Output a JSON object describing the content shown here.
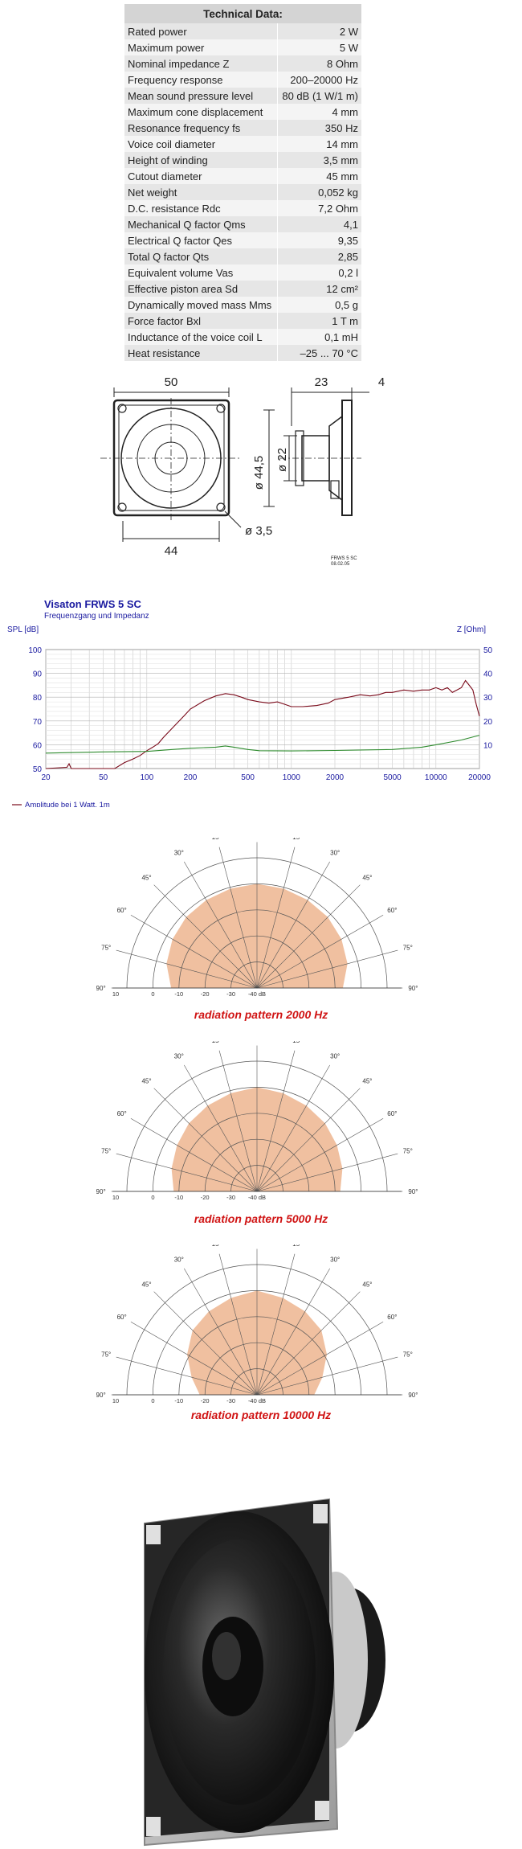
{
  "tech": {
    "title": "Technical Data:",
    "rows": [
      {
        "k": "Rated power",
        "v": "2 W"
      },
      {
        "k": "Maximum power",
        "v": "5 W"
      },
      {
        "k": "Nominal impedance Z",
        "v": "8 Ohm"
      },
      {
        "k": "Frequency response",
        "v": "200–20000 Hz"
      },
      {
        "k": "Mean sound pressure level",
        "v": "80 dB (1 W/1 m)"
      },
      {
        "k": "Maximum cone displacement",
        "v": "4 mm"
      },
      {
        "k": "Resonance frequency fs",
        "v": "350 Hz"
      },
      {
        "k": "Voice coil diameter",
        "v": "14 mm"
      },
      {
        "k": "Height of winding",
        "v": "3,5 mm"
      },
      {
        "k": "Cutout diameter",
        "v": "45 mm"
      },
      {
        "k": "Net weight",
        "v": "0,052 kg"
      },
      {
        "k": "D.C. resistance Rdc",
        "v": "7,2 Ohm"
      },
      {
        "k": "Mechanical Q factor Qms",
        "v": "4,1"
      },
      {
        "k": "Electrical Q factor Qes",
        "v": "9,35"
      },
      {
        "k": "Total Q factor Qts",
        "v": "2,85"
      },
      {
        "k": "Equivalent volume Vas",
        "v": "0,2 l"
      },
      {
        "k": "Effective piston area Sd",
        "v": "12 cm²"
      },
      {
        "k": "Dynamically moved mass Mms",
        "v": "0,5 g"
      },
      {
        "k": "Force factor Bxl",
        "v": "1 T m"
      },
      {
        "k": "Inductance of the voice coil L",
        "v": "0,1 mH"
      },
      {
        "k": "Heat resistance",
        "v": "–25 ... 70 °C"
      }
    ]
  },
  "drawing": {
    "dim_width": "50",
    "dim_depth": "23",
    "dim_flange": "4",
    "dim_bottom": "44",
    "dim_outer_dia": "ø 44,5",
    "dim_inner_dia": "ø 22",
    "dim_hole": "ø 3,5",
    "stamp_line1": "FRWS 5 SC",
    "stamp_line2": "08.02.05"
  },
  "chart_data": {
    "type": "line",
    "title": "Visaton FRWS 5 SC",
    "subtitle": "Frequenzgang und Impedanz",
    "ylabel_left": "SPL [dB]",
    "ylabel_right": "Z [Ohm]",
    "x_scale": "log",
    "xlim": [
      20,
      20000
    ],
    "ylim_left": [
      50,
      100
    ],
    "ylim_right": [
      0,
      50
    ],
    "x_ticks": [
      "20",
      "50",
      "100",
      "200",
      "500",
      "1000",
      "2000",
      "5000",
      "10000",
      "20000"
    ],
    "y_ticks_left": [
      "50",
      "60",
      "70",
      "80",
      "90",
      "100"
    ],
    "y_ticks_right": [
      "10",
      "20",
      "30",
      "40",
      "50"
    ],
    "grid": true,
    "legend_position": "bottom-left",
    "colors": {
      "spl": "#7a0a1a",
      "impedance": "#2e8b2e",
      "axis_text": "#1a1aa0"
    },
    "series": [
      {
        "name": "Amplitude bei 1 Watt, 1m",
        "axis": "left",
        "x": [
          20,
          28,
          29,
          30,
          40,
          60,
          70,
          80,
          90,
          100,
          110,
          120,
          130,
          150,
          180,
          200,
          250,
          300,
          350,
          400,
          450,
          500,
          600,
          700,
          800,
          900,
          1000,
          1200,
          1500,
          1800,
          2000,
          2500,
          3000,
          3500,
          4000,
          4500,
          5000,
          6000,
          7000,
          8000,
          9000,
          10000,
          11000,
          12000,
          13000,
          14000,
          15000,
          16000,
          17000,
          18000,
          19000,
          20000
        ],
        "y": [
          50,
          50.5,
          52,
          50,
          50,
          50,
          52.5,
          54,
          55.5,
          57.5,
          59,
          60.5,
          63,
          67,
          72,
          75,
          78.5,
          80.5,
          81.5,
          81,
          80,
          79,
          78,
          77.5,
          78,
          77,
          76,
          76,
          76.5,
          77.5,
          79,
          80,
          81,
          80.5,
          81,
          82,
          82,
          83,
          82.5,
          83,
          83,
          84,
          83,
          84,
          82,
          83,
          84,
          87,
          85,
          83,
          77,
          72
        ]
      },
      {
        "name": "Impedanz [Ohm]",
        "axis": "right",
        "x": [
          20,
          50,
          100,
          150,
          200,
          300,
          350,
          400,
          500,
          600,
          1000,
          2000,
          5000,
          8000,
          10000,
          15000,
          20000
        ],
        "y": [
          6.5,
          7,
          7.2,
          8,
          8.5,
          9,
          9.5,
          9,
          8,
          7.5,
          7.4,
          7.6,
          8,
          9,
          10,
          12,
          14
        ]
      }
    ]
  },
  "polar": {
    "angle_labels": [
      "0°",
      "15°",
      "30°",
      "45°",
      "60°",
      "75°",
      "90°",
      "15°",
      "30°",
      "45°",
      "60°",
      "75°",
      "90°"
    ],
    "db_labels": [
      "10",
      "0",
      "-10",
      "-20",
      "-30",
      "-40 dB"
    ],
    "captions": [
      "radiation pattern 2000 Hz",
      "radiation pattern 5000 Hz",
      "radiation pattern 10000 Hz"
    ],
    "fill_color": "#f0c0a0",
    "patterns": [
      {
        "freq": "2000 Hz",
        "radii_db": [
          0,
          -0.5,
          -1,
          -1.5,
          -2.5,
          -4,
          -7
        ]
      },
      {
        "freq": "5000 Hz",
        "radii_db": [
          0,
          -1,
          -2,
          -3,
          -4.5,
          -6,
          -8
        ]
      },
      {
        "freq": "10000 Hz",
        "radii_db": [
          0,
          -1.5,
          -3,
          -5,
          -9,
          -14,
          -18
        ]
      }
    ]
  },
  "photo": {
    "alt": "loudspeaker photo"
  }
}
